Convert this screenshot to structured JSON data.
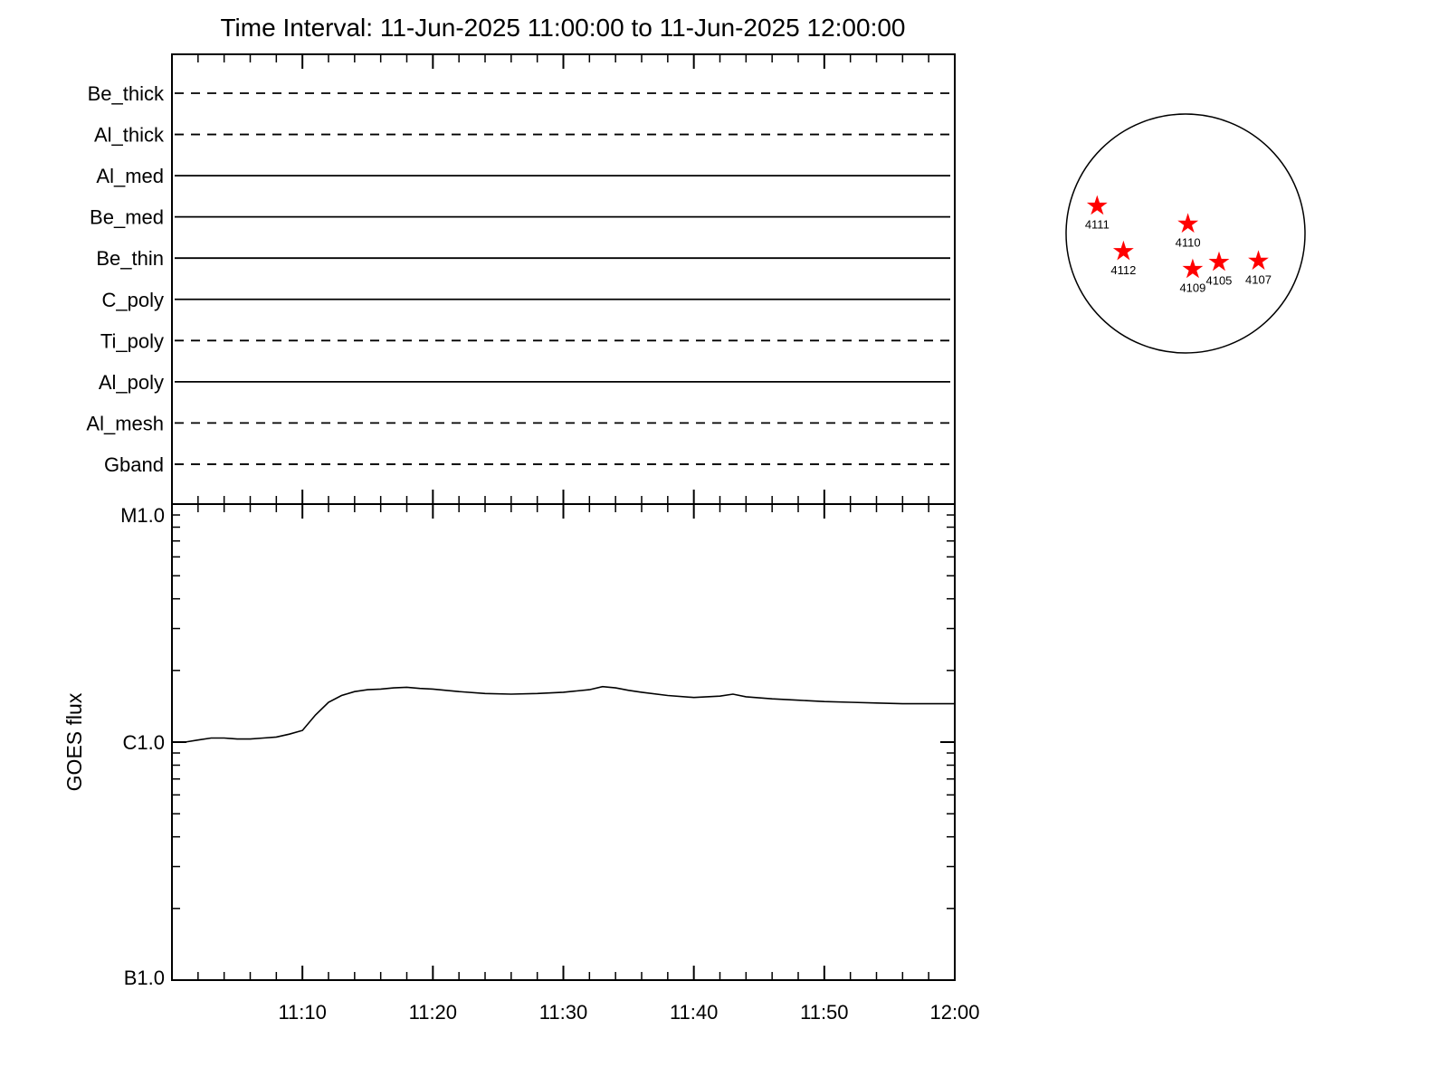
{
  "title": "Time Interval: 11-Jun-2025 11:00:00 to 11-Jun-2025 12:00:00",
  "colors": {
    "background": "#ffffff",
    "line": "#000000",
    "marker": "#ff0000"
  },
  "chart_data": [
    {
      "type": "line",
      "title": "Instrument filter timeline",
      "categories": [
        "Be_thick",
        "Al_thick",
        "Al_med",
        "Be_med",
        "Be_thin",
        "C_poly",
        "Ti_poly",
        "Al_poly",
        "Al_mesh",
        "Gband"
      ],
      "line_styles": [
        "dashed",
        "dashed",
        "solid",
        "solid",
        "solid",
        "solid",
        "dashed",
        "solid",
        "dashed",
        "dashed"
      ],
      "x_minutes_range": [
        0,
        60
      ],
      "grid": false,
      "legend": "none"
    },
    {
      "type": "line",
      "title": "GOES X-ray flux",
      "ylabel": "GOES flux",
      "yscale": "log",
      "ylim": [
        1e-07,
        1e-05
      ],
      "ytick_labels": [
        "M1.0",
        "C1.0",
        "B1.0"
      ],
      "xtick_minutes": [
        10,
        20,
        30,
        40,
        50,
        60
      ],
      "xtick_labels": [
        "11:10",
        "11:20",
        "11:30",
        "11:40",
        "11:50",
        "12:00"
      ],
      "x_minutes": [
        0,
        1,
        2,
        3,
        4,
        5,
        6,
        7,
        8,
        9,
        10,
        11,
        12,
        13,
        14,
        15,
        16,
        17,
        18,
        19,
        20,
        22,
        24,
        26,
        28,
        30,
        31,
        32,
        33,
        34,
        35,
        36,
        38,
        40,
        42,
        43,
        44,
        46,
        48,
        50,
        52,
        54,
        56,
        58,
        60
      ],
      "flux_c_units": [
        1.0,
        1.0,
        1.02,
        1.04,
        1.04,
        1.03,
        1.03,
        1.04,
        1.05,
        1.08,
        1.12,
        1.3,
        1.47,
        1.57,
        1.63,
        1.66,
        1.67,
        1.69,
        1.7,
        1.68,
        1.67,
        1.63,
        1.6,
        1.59,
        1.6,
        1.62,
        1.64,
        1.66,
        1.71,
        1.69,
        1.65,
        1.62,
        1.57,
        1.54,
        1.56,
        1.59,
        1.55,
        1.52,
        1.5,
        1.48,
        1.47,
        1.46,
        1.45,
        1.45,
        1.45
      ],
      "grid": false,
      "legend": "none"
    },
    {
      "type": "scatter",
      "title": "Solar disk with flaring active regions",
      "marker": "star",
      "regions": [
        {
          "label": "4111",
          "x": -0.74,
          "y": 0.23
        },
        {
          "label": "4110",
          "x": 0.02,
          "y": 0.08
        },
        {
          "label": "4112",
          "x": -0.52,
          "y": -0.15
        },
        {
          "label": "4109",
          "x": 0.06,
          "y": -0.3
        },
        {
          "label": "4105",
          "x": 0.28,
          "y": -0.24
        },
        {
          "label": "4107",
          "x": 0.61,
          "y": -0.23
        }
      ]
    }
  ]
}
